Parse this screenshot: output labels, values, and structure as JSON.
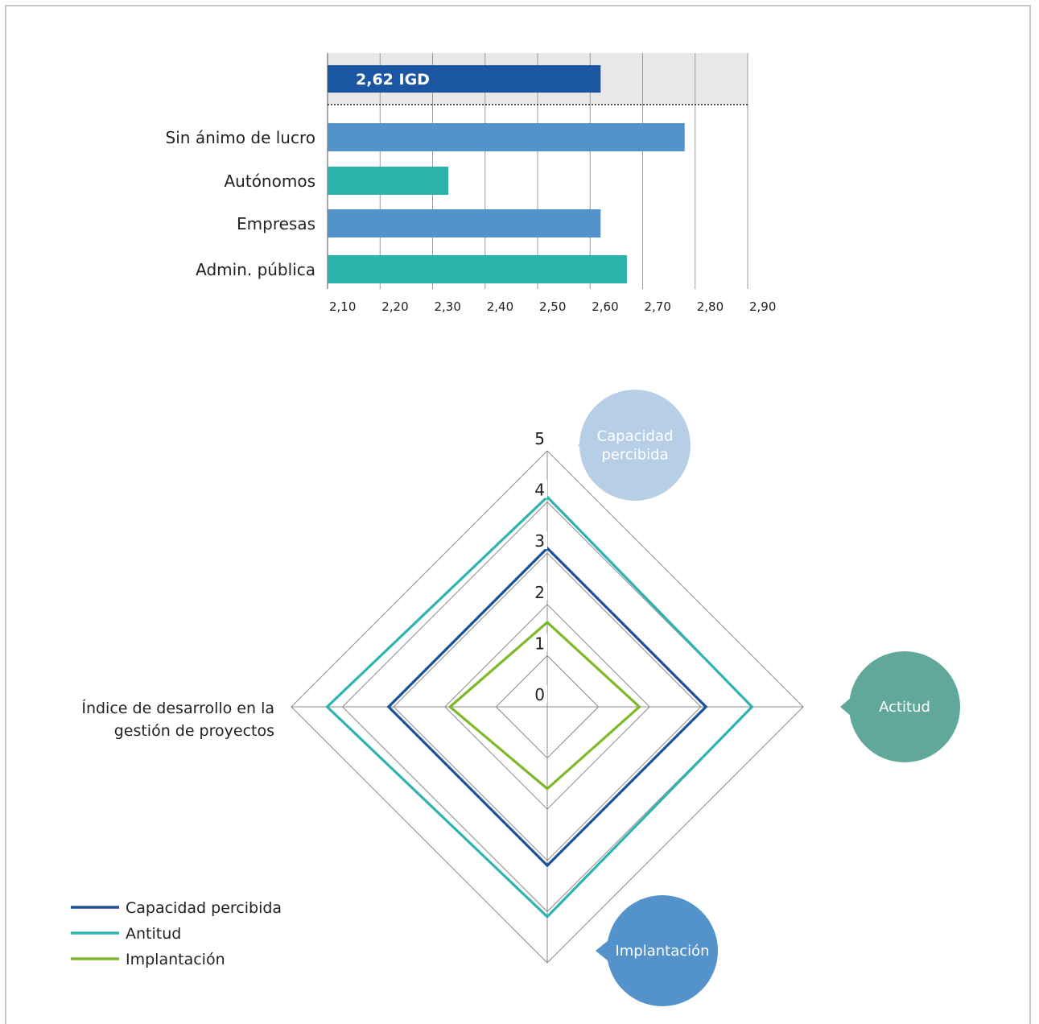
{
  "chart_data": [
    {
      "type": "bar",
      "orientation": "horizontal",
      "reference": {
        "label": "2,62 IGD",
        "value": 2.62,
        "color": "#1b56a3"
      },
      "categories": [
        "Sin ánimo de lucro",
        "Autónomos",
        "Empresas",
        "Admin. pública"
      ],
      "values": [
        2.78,
        2.33,
        2.62,
        2.67
      ],
      "colors": [
        "#5392cb",
        "#2bb3ac",
        "#5392cb",
        "#2bb3ac"
      ],
      "xlim": [
        2.1,
        2.9
      ],
      "xticks": [
        {
          "v": 2.1,
          "label": "2,10"
        },
        {
          "v": 2.2,
          "label": "2,20"
        },
        {
          "v": 2.3,
          "label": "2,30"
        },
        {
          "v": 2.4,
          "label": "2,40"
        },
        {
          "v": 2.5,
          "label": "2,50"
        },
        {
          "v": 2.6,
          "label": "2,60"
        },
        {
          "v": 2.7,
          "label": "2,70"
        },
        {
          "v": 2.8,
          "label": "2,80"
        },
        {
          "v": 2.9,
          "label": "2,90"
        }
      ],
      "grid": true
    },
    {
      "type": "radar",
      "axes": [
        {
          "label": "Capacidad percibida",
          "bubble_color": "#b7cfe6"
        },
        {
          "label": "Actitud",
          "bubble_color": "#60a99a"
        },
        {
          "label": "Implantación",
          "bubble_color": "#5392cb"
        },
        {
          "label": "Índice de desarrollo en la gestión de proyectos",
          "bubble_color": ""
        }
      ],
      "rlim": [
        0,
        5
      ],
      "rticks": [
        "0",
        "1",
        "2",
        "3",
        "4",
        "5"
      ],
      "series": [
        {
          "name": "Capacidad percibida",
          "color": "#1a4f9c",
          "values": [
            3.1,
            3.1,
            3.1,
            3.1
          ]
        },
        {
          "name": "Antitud",
          "color": "#2fb3b0",
          "values": [
            4.1,
            4.0,
            4.1,
            4.3
          ]
        },
        {
          "name": "Implantación",
          "color": "#7db928",
          "values": [
            1.65,
            1.8,
            1.6,
            1.9
          ]
        }
      ],
      "legend_position": "bottom-left"
    }
  ]
}
